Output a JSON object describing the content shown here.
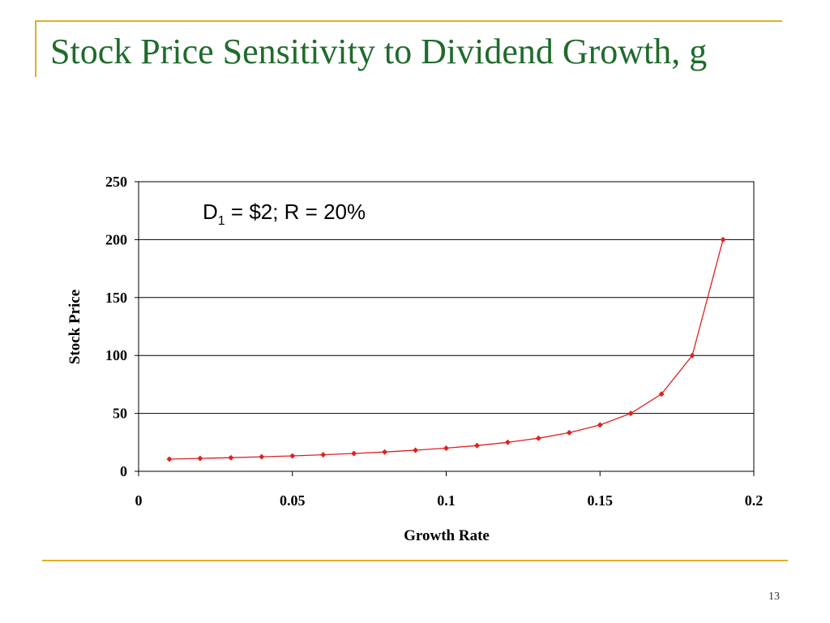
{
  "slide": {
    "title": "Stock Price Sensitivity to Dividend Growth, g",
    "page_number": "13"
  },
  "colors": {
    "title": "#1f6b2c",
    "accent_rule": "#e0b020",
    "series_line": "#e02020",
    "gridline": "#000000"
  },
  "chart_data": {
    "type": "line",
    "xlabel": "Growth Rate",
    "ylabel": "Stock Price",
    "xlim": [
      0,
      0.2
    ],
    "ylim": [
      0,
      250
    ],
    "x_ticks": [
      "0",
      "0.05",
      "0.1",
      "0.15",
      "0.2"
    ],
    "y_ticks": [
      "0",
      "50",
      "100",
      "150",
      "200",
      "250"
    ],
    "grid": "horizontal",
    "annotation": {
      "main": "D",
      "sub": "1",
      "rest": " = $2; R = 20%"
    },
    "series": [
      {
        "marker": "diamond",
        "x": [
          0.01,
          0.02,
          0.03,
          0.04,
          0.05,
          0.06,
          0.07,
          0.08,
          0.09,
          0.1,
          0.11,
          0.12,
          0.13,
          0.14,
          0.15,
          0.16,
          0.17,
          0.18,
          0.19
        ],
        "y": [
          10.53,
          11.11,
          11.76,
          12.5,
          13.33,
          14.29,
          15.38,
          16.67,
          18.18,
          20.0,
          22.22,
          25.0,
          28.57,
          33.33,
          40.0,
          50.0,
          66.67,
          100.0,
          200.0
        ]
      }
    ]
  }
}
